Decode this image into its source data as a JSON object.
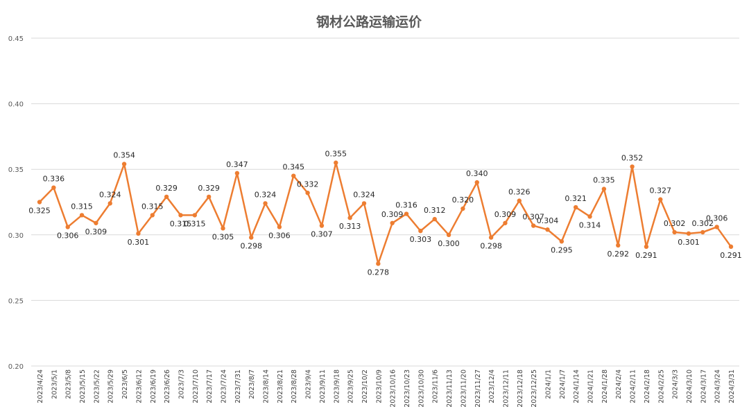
{
  "chart_data": {
    "type": "line",
    "title": "钢材公路运输运价",
    "xlabel": "",
    "ylabel": "",
    "ylim": [
      0.2,
      0.45
    ],
    "yticks": [
      "0.20",
      "0.25",
      "0.30",
      "0.35",
      "0.40",
      "0.45"
    ],
    "grid": true,
    "legend": "none",
    "line_color": "#ED7D31",
    "series": [
      {
        "name": "钢材公路运输运价",
        "categories": [
          "2023/4/24",
          "2023/5/1",
          "2023/5/8",
          "2023/5/15",
          "2023/5/22",
          "2023/5/29",
          "2023/6/5",
          "2023/6/12",
          "2023/6/19",
          "2023/6/26",
          "2023/7/3",
          "2023/7/10",
          "2023/7/17",
          "2023/7/24",
          "2023/7/31",
          "2023/8/7",
          "2023/8/14",
          "2023/8/21",
          "2023/8/28",
          "2023/9/4",
          "2023/9/11",
          "2023/9/18",
          "2023/9/25",
          "2023/10/2",
          "2023/10/9",
          "2023/10/16",
          "2023/10/23",
          "2023/10/30",
          "2023/11/6",
          "2023/11/13",
          "2023/11/20",
          "2023/11/27",
          "2023/12/4",
          "2023/12/11",
          "2023/12/18",
          "2023/12/25",
          "2024/1/1",
          "2024/1/7",
          "2024/1/14",
          "2024/1/21",
          "2024/1/28",
          "2024/2/4",
          "2024/2/11",
          "2024/2/18",
          "2024/2/25",
          "2024/3/3",
          "2024/3/10",
          "2024/3/17",
          "2024/3/24",
          "2024/3/31"
        ],
        "values": [
          0.325,
          0.336,
          0.306,
          0.315,
          0.309,
          0.324,
          0.354,
          0.301,
          0.315,
          0.329,
          0.315,
          0.315,
          0.329,
          0.305,
          0.347,
          0.298,
          0.324,
          0.306,
          0.345,
          0.332,
          0.307,
          0.355,
          0.313,
          0.324,
          0.278,
          0.309,
          0.316,
          0.303,
          0.312,
          0.3,
          0.32,
          0.34,
          0.298,
          0.309,
          0.326,
          0.307,
          0.304,
          0.295,
          0.321,
          0.314,
          0.335,
          0.292,
          0.352,
          0.291,
          0.327,
          0.302,
          0.301,
          0.302,
          0.306,
          0.291
        ],
        "labels": [
          "0.325",
          "0.336",
          "0.306",
          "0.315",
          "0.309",
          "0.324",
          "0.354",
          "0.301",
          "0.315",
          "0.329",
          "0.315",
          "0.315",
          "0.329",
          "0.305",
          "0.347",
          "0.298",
          "0.324",
          "0.306",
          "0.345",
          "0.332",
          "0.307",
          "0.355",
          "0.313",
          "0.324",
          "0.278",
          "0.309",
          "0.316",
          "0.303",
          "0.312",
          "0.300",
          "0.320",
          "0.340",
          "0.298",
          "0.309",
          "0.326",
          "0.307",
          "0.304",
          "0.295",
          "0.321",
          "0.314",
          "0.335",
          "0.292",
          "0.352",
          "0.291",
          "0.327",
          "0.302",
          "0.301",
          "0.302",
          "0.306",
          "0.291"
        ]
      }
    ]
  }
}
